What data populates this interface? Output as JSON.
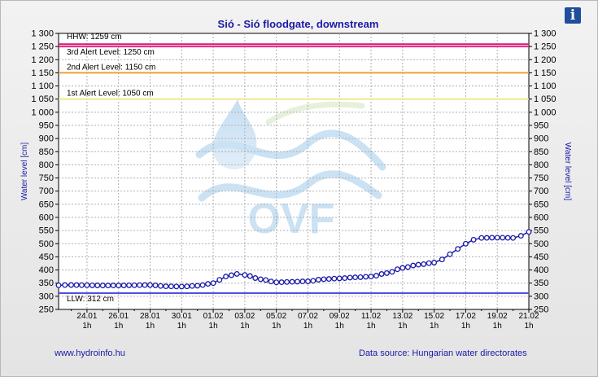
{
  "title": "Sió - Sió floodgate, downstream",
  "info_icon": "info-icon",
  "info_glyph": "i",
  "footer": {
    "left": "www.hydroinfo.hu",
    "right": "Data source: Hungarian water directorates"
  },
  "watermark": "OVF",
  "colors": {
    "series": "#1a1aa8",
    "hhw": "#d4147a",
    "alert3": "#e8287a",
    "alert2": "#f0a030",
    "alert1": "#f0e890",
    "llw": "#5050e0",
    "text": "#1a1aa8"
  },
  "chart_data": {
    "type": "line",
    "ylabel_left": "Water level [cm]",
    "ylabel_right": "Water level [cm]",
    "ylim": [
      250,
      1300
    ],
    "yticks": [
      250,
      300,
      350,
      400,
      450,
      500,
      550,
      600,
      650,
      700,
      750,
      800,
      850,
      900,
      950,
      1000,
      1050,
      1100,
      1150,
      1200,
      1250,
      1300
    ],
    "ytick_labels": [
      "250",
      "300",
      "350",
      "400",
      "450",
      "500",
      "550",
      "600",
      "650",
      "700",
      "750",
      "800",
      "850",
      "900",
      "950",
      "1 000",
      "1 050",
      "1 100",
      "1 150",
      "1 200",
      "1 250",
      "1 300"
    ],
    "x_range_days": [
      22.2,
      52.0
    ],
    "x_ticks": [
      {
        "day": 24,
        "date": "24.01",
        "hour": "1h"
      },
      {
        "day": 26,
        "date": "26.01",
        "hour": "1h"
      },
      {
        "day": 28,
        "date": "28.01",
        "hour": "1h"
      },
      {
        "day": 30,
        "date": "30.01",
        "hour": "1h"
      },
      {
        "day": 32,
        "date": "01.02",
        "hour": "1h"
      },
      {
        "day": 34,
        "date": "03.02",
        "hour": "1h"
      },
      {
        "day": 36,
        "date": "05.02",
        "hour": "1h"
      },
      {
        "day": 38,
        "date": "07.02",
        "hour": "1h"
      },
      {
        "day": 40,
        "date": "09.02",
        "hour": "1h"
      },
      {
        "day": 42,
        "date": "11.02",
        "hour": "1h"
      },
      {
        "day": 44,
        "date": "13.02",
        "hour": "1h"
      },
      {
        "day": 46,
        "date": "15.02",
        "hour": "1h"
      },
      {
        "day": 48,
        "date": "17.02",
        "hour": "1h"
      },
      {
        "day": 50,
        "date": "19.02",
        "hour": "1h"
      },
      {
        "day": 52,
        "date": "21.02",
        "hour": "1h"
      }
    ],
    "reference_lines": [
      {
        "name": "HHW",
        "label": "HHW: 1259 cm",
        "value": 1259,
        "color": "#d4147a"
      },
      {
        "name": "alert3",
        "label": "3rd Alert Level: 1250 cm",
        "value": 1250,
        "color": "#e8287a"
      },
      {
        "name": "alert2",
        "label": "2nd Alert Level: 1150 cm",
        "value": 1150,
        "color": "#f0a030"
      },
      {
        "name": "alert1",
        "label": "1st Alert Level: 1050 cm",
        "value": 1050,
        "color": "#f0e890"
      },
      {
        "name": "LLW",
        "label": "LLW: 312 cm",
        "value": 312,
        "color": "#5050e0"
      }
    ],
    "series": [
      {
        "color": "#1a1aa8",
        "x": [
          22.2,
          23,
          24,
          25,
          26,
          27,
          28,
          29,
          30,
          31,
          32,
          32.8,
          33.5,
          34,
          35,
          36,
          37,
          38,
          39,
          40,
          41,
          42,
          43,
          44,
          45,
          46,
          46.5,
          47,
          47.5,
          48,
          48.5,
          49,
          50,
          51,
          51.5,
          52
        ],
        "y": [
          342,
          343,
          342,
          341,
          341,
          342,
          343,
          338,
          337,
          340,
          350,
          375,
          385,
          381,
          365,
          353,
          355,
          357,
          365,
          368,
          372,
          375,
          388,
          408,
          420,
          428,
          440,
          460,
          480,
          500,
          515,
          522,
          523,
          522,
          530,
          545
        ]
      }
    ]
  }
}
